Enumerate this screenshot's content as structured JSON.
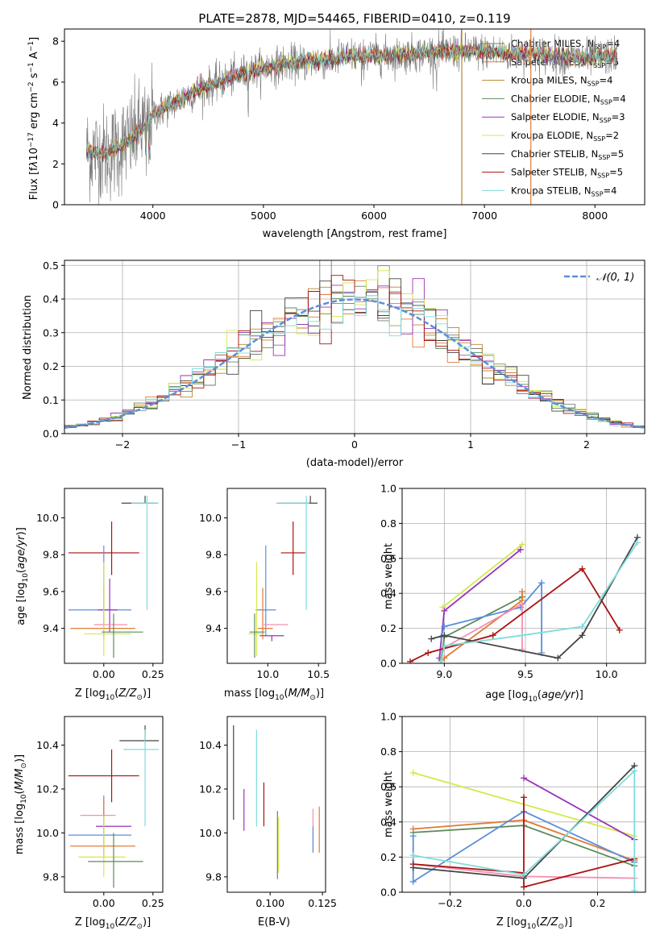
{
  "figure": {
    "title": "PLATE=2878, MJD=54465, FIBERID=0410, z=0.119"
  },
  "models": [
    {
      "name": "Chabrier MILES",
      "nssp": "4",
      "color": "#7a7a7a"
    },
    {
      "name": "Salpeter MILES",
      "nssp": "5",
      "color": "#e07b35"
    },
    {
      "name": "Kroupa MILES",
      "nssp": "4",
      "color": "#b8862b"
    },
    {
      "name": "Chabrier ELODIE",
      "nssp": "4",
      "color": "#5c8a5c"
    },
    {
      "name": "Salpeter ELODIE",
      "nssp": "3",
      "color": "#9933bb"
    },
    {
      "name": "Kroupa ELODIE",
      "nssp": "2",
      "color": "#d4e84a"
    },
    {
      "name": "Chabrier STELIB",
      "nssp": "5",
      "color": "#444444"
    },
    {
      "name": "Salpeter STELIB",
      "nssp": "5",
      "color": "#aa1111"
    },
    {
      "name": "Kroupa STELIB",
      "nssp": "4",
      "color": "#7fdcdc"
    }
  ],
  "chart_data": [
    {
      "id": "spectrum",
      "type": "line",
      "xlabel": "wavelength [Angstrom, rest frame]",
      "ylabel": "Flux [f_λ 10^-17 erg cm^-2 s^-1 A^-1]",
      "xlim": [
        3200,
        8450
      ],
      "ylim": [
        0,
        8.6
      ],
      "xticks": [
        4000,
        5000,
        6000,
        7000,
        8000
      ],
      "yticks": [
        0,
        2,
        4,
        6,
        8
      ],
      "grid": false,
      "legend_position": "right",
      "continuum_x": [
        3400,
        3600,
        3800,
        4000,
        4200,
        4400,
        4600,
        4800,
        5000,
        5200,
        5400,
        5600,
        5800,
        6000,
        6200,
        6400,
        6600,
        6800,
        7000,
        7200,
        7400,
        7600,
        7800,
        8000,
        8200
      ],
      "continuum_y": [
        2.6,
        2.5,
        3.2,
        4.4,
        5.0,
        5.6,
        6.0,
        6.4,
        6.7,
        6.9,
        7.0,
        7.1,
        7.3,
        7.3,
        7.3,
        7.4,
        7.5,
        7.5,
        7.5,
        7.4,
        7.4,
        7.3,
        7.2,
        7.2,
        7.3
      ],
      "spike_lines": [
        {
          "x": 6795,
          "y_top": 8.6,
          "color": "#b8862b"
        },
        {
          "x": 7420,
          "y_top": 8.6,
          "color": "#e07b35"
        }
      ]
    },
    {
      "id": "residuals",
      "type": "histogram",
      "xlabel": "(data-model)/error",
      "ylabel": "Normed distribution",
      "xlim": [
        -2.5,
        2.5
      ],
      "ylim": [
        0,
        0.515
      ],
      "xticks": [
        -2,
        -1,
        0,
        1,
        2
      ],
      "yticks": [
        0.0,
        0.1,
        0.2,
        0.3,
        0.4,
        0.5
      ],
      "grid": true,
      "bin_width": 0.1,
      "gaussian_label": "𝒩(0, 1)",
      "gaussian_color": "#5b8fd9",
      "legend_position": "top-right"
    },
    {
      "id": "age_vs_Z",
      "type": "errorbar",
      "xlabel": "Z [log10(Z/Z⊙)]",
      "ylabel": "age  [log10(age/yr)]",
      "xlim": [
        -0.2,
        0.3
      ],
      "ylim": [
        9.21,
        10.16
      ],
      "xticks": [
        0.0,
        0.25
      ],
      "yticks": [
        9.4,
        9.6,
        9.8,
        10.0
      ],
      "points": [
        {
          "x": 0.21,
          "xerr": [
            0.12,
            0.06
          ],
          "y": 10.08,
          "yerr": [
            0.0,
            0.04
          ],
          "color": "#444444"
        },
        {
          "x": 0.22,
          "xerr": [
            0.08,
            0.06
          ],
          "y": 10.08,
          "yerr": [
            0.58,
            0.04
          ],
          "color": "#7fdcdc"
        },
        {
          "x": 0.04,
          "xerr": [
            0.22,
            0.14
          ],
          "y": 9.81,
          "yerr": [
            0.12,
            0.17
          ],
          "color": "#aa1111"
        },
        {
          "x": 0.0,
          "xerr": [
            0.18,
            0.14
          ],
          "y": 9.5,
          "yerr": [
            0.14,
            0.35
          ],
          "color": "#5b8fd9"
        },
        {
          "x": 0.03,
          "xerr": [
            0.06,
            0.04
          ],
          "y": 9.5,
          "yerr": [
            0.12,
            0.17
          ],
          "color": "#9933bb"
        },
        {
          "x": 0.0,
          "xerr": [
            0.05,
            0.12
          ],
          "y": 9.42,
          "yerr": [
            0.06,
            0.06
          ],
          "color": "#f48fb1"
        },
        {
          "x": 0.0,
          "xerr": [
            0.17,
            0.16
          ],
          "y": 9.4,
          "yerr": [
            0.06,
            0.22
          ],
          "color": "#e07b35"
        },
        {
          "x": 0.0,
          "xerr": [
            0.1,
            0.14
          ],
          "y": 9.37,
          "yerr": [
            0.12,
            0.39
          ],
          "color": "#d4e84a"
        },
        {
          "x": 0.05,
          "xerr": [
            0.06,
            0.15
          ],
          "y": 9.38,
          "yerr": [
            0.14,
            0.1
          ],
          "color": "#5c8a5c"
        }
      ]
    },
    {
      "id": "age_vs_mass",
      "type": "errorbar",
      "xlabel": "mass [log10(M/M⊙)]",
      "ylabel": "",
      "xlim": [
        9.6,
        10.57
      ],
      "ylim": [
        9.21,
        10.16
      ],
      "xticks": [
        10.0,
        10.5
      ],
      "yticks": [
        9.4,
        9.6,
        9.8,
        10.0
      ],
      "points": [
        {
          "x": 10.42,
          "xerr": [
            0.32,
            0.07
          ],
          "y": 10.08,
          "yerr": [
            0.0,
            0.04
          ],
          "color": "#444444"
        },
        {
          "x": 10.38,
          "xerr": [
            0.3,
            0.03
          ],
          "y": 10.08,
          "yerr": [
            0.58,
            0.04
          ],
          "color": "#7fdcdc"
        },
        {
          "x": 10.25,
          "xerr": [
            0.12,
            0.12
          ],
          "y": 9.81,
          "yerr": [
            0.12,
            0.17
          ],
          "color": "#aa1111"
        },
        {
          "x": 9.98,
          "xerr": [
            0.1,
            0.1
          ],
          "y": 9.5,
          "yerr": [
            0.14,
            0.35
          ],
          "color": "#5b8fd9"
        },
        {
          "x": 10.04,
          "xerr": [
            0.12,
            0.12
          ],
          "y": 9.36,
          "yerr": [
            0.03,
            0.0
          ],
          "color": "#9933bb"
        },
        {
          "x": 10.08,
          "xerr": [
            0.12,
            0.12
          ],
          "y": 9.42,
          "yerr": [
            0.0,
            0.0
          ],
          "color": "#f48fb1"
        },
        {
          "x": 9.95,
          "xerr": [
            0.05,
            0.1
          ],
          "y": 9.4,
          "yerr": [
            0.06,
            0.22
          ],
          "color": "#e07b35"
        },
        {
          "x": 9.89,
          "xerr": [
            0.08,
            0.05
          ],
          "y": 9.37,
          "yerr": [
            0.12,
            0.39
          ],
          "color": "#d4e84a"
        },
        {
          "x": 9.87,
          "xerr": [
            0.05,
            0.1
          ],
          "y": 9.38,
          "yerr": [
            0.14,
            0.1
          ],
          "color": "#5c8a5c"
        }
      ]
    },
    {
      "id": "weight_vs_age",
      "type": "line",
      "xlabel": "age  [log10(age/yr)]",
      "ylabel": "mass weight",
      "xlim": [
        8.74,
        10.24
      ],
      "ylim": [
        0,
        1.0
      ],
      "xticks": [
        9.0,
        9.5,
        10.0
      ],
      "yticks": [
        0.0,
        0.2,
        0.4,
        0.6,
        0.8,
        1.0
      ],
      "grid": true,
      "series": [
        {
          "color": "#d4e84a",
          "x": [
            8.99,
            9.48
          ],
          "y": [
            0.32,
            0.68
          ]
        },
        {
          "color": "#9933bb",
          "x": [
            8.97,
            9.0,
            9.47
          ],
          "y": [
            0.03,
            0.3,
            0.65
          ]
        },
        {
          "color": "#5c8a5c",
          "x": [
            8.98,
            9.0,
            9.48
          ],
          "y": [
            0.02,
            0.15,
            0.38
          ]
        },
        {
          "color": "#e07b35",
          "x": [
            9.0,
            9.48,
            9.48
          ],
          "y": [
            0.03,
            0.36,
            0.41
          ]
        },
        {
          "color": "#5b8fd9",
          "x": [
            8.98,
            9.0,
            9.47,
            9.6,
            9.6
          ],
          "y": [
            0.15,
            0.21,
            0.32,
            0.46,
            0.06
          ]
        },
        {
          "color": "#f48fb1",
          "x": [
            9.0,
            9.48,
            9.48
          ],
          "y": [
            0.09,
            0.34,
            0.08
          ]
        },
        {
          "color": "#aa1111",
          "x": [
            8.79,
            8.9,
            9.3,
            9.85,
            10.08
          ],
          "y": [
            0.01,
            0.06,
            0.16,
            0.54,
            0.19
          ]
        },
        {
          "color": "#444444",
          "x": [
            8.92,
            9.0,
            9.7,
            9.85,
            10.19
          ],
          "y": [
            0.14,
            0.16,
            0.03,
            0.16,
            0.72
          ]
        },
        {
          "color": "#7fdcdc",
          "x": [
            8.98,
            9.0,
            9.48,
            9.85,
            10.19
          ],
          "y": [
            0.01,
            0.1,
            0.16,
            0.21,
            0.69
          ]
        }
      ]
    },
    {
      "id": "mass_vs_Z",
      "type": "errorbar",
      "xlabel": "Z [log10(Z/Z⊙)]",
      "ylabel": "mass [log10(M/M⊙)]",
      "xlim": [
        -0.2,
        0.3
      ],
      "ylim": [
        9.73,
        10.53
      ],
      "xticks": [
        0.0,
        0.25
      ],
      "yticks": [
        9.8,
        10.0,
        10.2,
        10.4
      ],
      "points": [
        {
          "x": 0.21,
          "xerr": [
            0.13,
            0.07
          ],
          "y": 10.42,
          "yerr": [
            0.0,
            0.07
          ],
          "color": "#444444"
        },
        {
          "x": 0.21,
          "xerr": [
            0.11,
            0.07
          ],
          "y": 10.38,
          "yerr": [
            0.35,
            0.09
          ],
          "color": "#7fdcdc"
        },
        {
          "x": 0.04,
          "xerr": [
            0.22,
            0.14
          ],
          "y": 10.26,
          "yerr": [
            0.12,
            0.12
          ],
          "color": "#aa1111"
        },
        {
          "x": 0.0,
          "xerr": [
            0.18,
            0.14
          ],
          "y": 9.99,
          "yerr": [
            0.1,
            0.18
          ],
          "color": "#5b8fd9"
        },
        {
          "x": 0.03,
          "xerr": [
            0.07,
            0.11
          ],
          "y": 10.03,
          "yerr": [
            0.0,
            0.0
          ],
          "color": "#9933bb"
        },
        {
          "x": 0.0,
          "xerr": [
            0.12,
            0.06
          ],
          "y": 10.08,
          "yerr": [
            0.0,
            0.0
          ],
          "color": "#f48fb1"
        },
        {
          "x": 0.0,
          "xerr": [
            0.17,
            0.16
          ],
          "y": 9.94,
          "yerr": [
            0.03,
            0.21
          ],
          "color": "#e07b35"
        },
        {
          "x": 0.0,
          "xerr": [
            0.13,
            0.11
          ],
          "y": 9.89,
          "yerr": [
            0.09,
            0.19
          ],
          "color": "#d4e84a"
        },
        {
          "x": 0.05,
          "xerr": [
            0.13,
            0.15
          ],
          "y": 9.87,
          "yerr": [
            0.12,
            0.13
          ],
          "color": "#5c8a5c"
        }
      ]
    },
    {
      "id": "mass_vs_ebv",
      "type": "errorbar",
      "xlabel": "E(B-V)",
      "ylabel": "",
      "xlim": [
        0.0795,
        0.1265
      ],
      "ylim": [
        9.73,
        10.53
      ],
      "xticks": [
        0.1,
        0.125
      ],
      "yticks": [
        9.8,
        10.0,
        10.2,
        10.4
      ],
      "points": [
        {
          "x": 0.0825,
          "xerr": [
            0,
            0
          ],
          "y": 10.29,
          "yerr": [
            0.23,
            0.2
          ],
          "color": "#444444"
        },
        {
          "x": 0.0875,
          "xerr": [
            0,
            0
          ],
          "y": 10.1,
          "yerr": [
            0.09,
            0.1
          ],
          "color": "#9933bb"
        },
        {
          "x": 0.0935,
          "xerr": [
            0,
            0
          ],
          "y": 10.26,
          "yerr": [
            0.23,
            0.21
          ],
          "color": "#7fdcdc"
        },
        {
          "x": 0.097,
          "xerr": [
            0,
            0
          ],
          "y": 10.13,
          "yerr": [
            0.1,
            0.1
          ],
          "color": "#aa1111"
        },
        {
          "x": 0.1035,
          "xerr": [
            0,
            0
          ],
          "y": 9.95,
          "yerr": [
            0.16,
            0.15
          ],
          "color": "#5c8a5c"
        },
        {
          "x": 0.104,
          "xerr": [
            0,
            0
          ],
          "y": 9.92,
          "yerr": [
            0.1,
            0.15
          ],
          "color": "#d4e84a"
        },
        {
          "x": 0.1205,
          "xerr": [
            0,
            0
          ],
          "y": 10.01,
          "yerr": [
            0.1,
            0.1
          ],
          "color": "#f48fb1"
        },
        {
          "x": 0.1205,
          "xerr": [
            0,
            0
          ],
          "y": 9.98,
          "yerr": [
            0.07,
            0.05
          ],
          "color": "#5b8fd9"
        },
        {
          "x": 0.1235,
          "xerr": [
            0,
            0
          ],
          "y": 10.02,
          "yerr": [
            0.11,
            0.1
          ],
          "color": "#e07b35"
        }
      ]
    },
    {
      "id": "weight_vs_Z",
      "type": "line",
      "xlabel": "Z [log10(Z/Z⊙)]",
      "ylabel": "mass weight",
      "xlim": [
        -0.33,
        0.33
      ],
      "ylim": [
        0,
        1.0
      ],
      "xticks": [
        -0.2,
        0.0,
        0.2
      ],
      "yticks": [
        0.0,
        0.2,
        0.4,
        0.6,
        0.8,
        1.0
      ],
      "grid": true,
      "series": [
        {
          "color": "#d4e84a",
          "x": [
            -0.3,
            0.3
          ],
          "y": [
            0.68,
            0.32
          ]
        },
        {
          "color": "#9933bb",
          "x": [
            0.0,
            0.3
          ],
          "y": [
            0.65,
            0.3
          ]
        },
        {
          "color": "#5c8a5c",
          "x": [
            -0.3,
            0.0,
            0.3
          ],
          "y": [
            0.34,
            0.38,
            0.15
          ]
        },
        {
          "color": "#e07b35",
          "x": [
            -0.3,
            0.0,
            0.3
          ],
          "y": [
            0.36,
            0.41,
            0.18
          ]
        },
        {
          "color": "#5b8fd9",
          "x": [
            -0.3,
            -0.3,
            0.0,
            0.3
          ],
          "y": [
            0.32,
            0.06,
            0.46,
            0.17
          ]
        },
        {
          "color": "#f48fb1",
          "x": [
            -0.3,
            0.0,
            0.3
          ],
          "y": [
            0.16,
            0.09,
            0.08
          ]
        },
        {
          "color": "#aa1111",
          "x": [
            -0.3,
            0.0,
            0.0,
            0.0,
            0.3
          ],
          "y": [
            0.16,
            0.11,
            0.54,
            0.03,
            0.19
          ]
        },
        {
          "color": "#444444",
          "x": [
            -0.3,
            0.0,
            0.3
          ],
          "y": [
            0.14,
            0.08,
            0.72
          ]
        },
        {
          "color": "#7fdcdc",
          "x": [
            -0.3,
            0.0,
            0.3,
            0.3
          ],
          "y": [
            0.21,
            0.1,
            0.69,
            0.01
          ]
        }
      ]
    }
  ]
}
